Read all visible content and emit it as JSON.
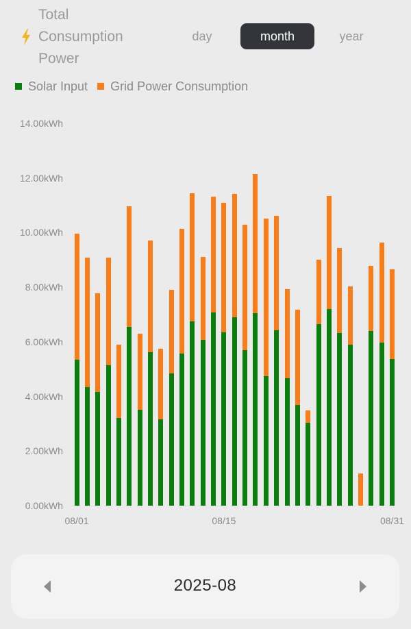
{
  "header": {
    "icon": "lightning-bolt-icon",
    "icon_color": "#f5b517",
    "title_lines": [
      "Total",
      "Consumption",
      "Power"
    ],
    "tabs": [
      {
        "label": "day",
        "active": false
      },
      {
        "label": "month",
        "active": true
      },
      {
        "label": "year",
        "active": false
      }
    ]
  },
  "legend": [
    {
      "label": "Solar Input",
      "color": "#087f0c"
    },
    {
      "label": "Grid Power Consumption",
      "color": "#fa7d17"
    }
  ],
  "navigator": {
    "period": "2025-08",
    "prev_icon": "triangle-left-icon",
    "next_icon": "triangle-right-icon"
  },
  "chart_data": {
    "type": "bar",
    "stacked": true,
    "title": "Total Consumption Power",
    "xlabel": "",
    "ylabel": "kWh",
    "ylim": [
      0,
      14
    ],
    "y_ticks": [
      "0.00kWh",
      "2.00kWh",
      "4.00kWh",
      "6.00kWh",
      "8.00kWh",
      "10.00kWh",
      "12.00kWh",
      "14.00kWh"
    ],
    "x_tick_labels": [
      {
        "index": 0,
        "label": "08/01"
      },
      {
        "index": 14,
        "label": "08/15"
      },
      {
        "index": 30,
        "label": "08/31"
      }
    ],
    "grid": false,
    "legend_position": "top-left",
    "categories": [
      "08/01",
      "08/02",
      "08/03",
      "08/04",
      "08/05",
      "08/06",
      "08/07",
      "08/08",
      "08/09",
      "08/10",
      "08/11",
      "08/12",
      "08/13",
      "08/14",
      "08/15",
      "08/16",
      "08/17",
      "08/18",
      "08/19",
      "08/20",
      "08/21",
      "08/22",
      "08/23",
      "08/24",
      "08/25",
      "08/26",
      "08/27",
      "08/28",
      "08/29",
      "08/30",
      "08/31"
    ],
    "series": [
      {
        "name": "Solar Input",
        "color": "#087f0c",
        "values": [
          5.34,
          4.34,
          4.16,
          5.14,
          3.21,
          6.55,
          3.51,
          5.62,
          3.16,
          4.84,
          5.57,
          6.75,
          6.07,
          7.07,
          6.35,
          6.9,
          5.69,
          7.05,
          4.74,
          6.42,
          4.67,
          3.69,
          3.04,
          6.65,
          7.2,
          6.32,
          5.9,
          0.0,
          6.4,
          5.97,
          5.37
        ]
      },
      {
        "name": "Grid Power Consumption",
        "color": "#fa7d17",
        "values": [
          4.62,
          4.74,
          3.62,
          3.94,
          2.69,
          4.41,
          2.79,
          4.09,
          2.59,
          3.06,
          4.57,
          4.69,
          3.04,
          4.24,
          4.74,
          4.52,
          4.6,
          5.09,
          5.77,
          4.19,
          3.26,
          3.49,
          0.45,
          2.36,
          4.14,
          3.11,
          2.13,
          1.18,
          2.38,
          3.66,
          3.29
        ]
      }
    ]
  }
}
